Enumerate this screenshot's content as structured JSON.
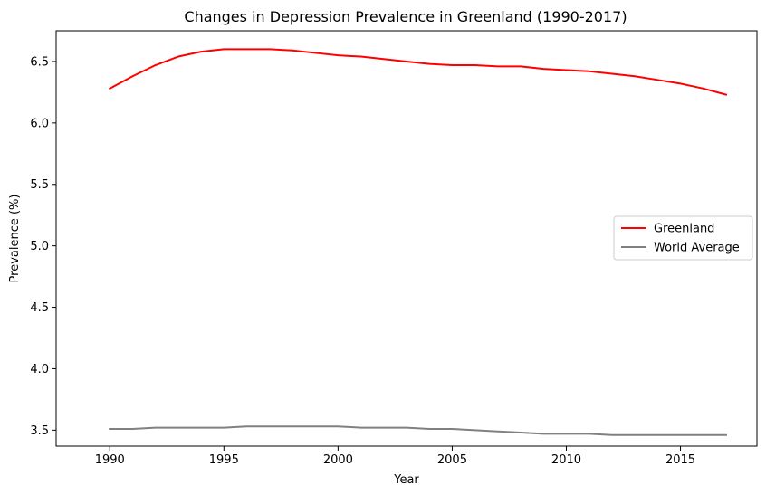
{
  "chart_data": {
    "type": "line",
    "title": "Changes in Depression Prevalence in Greenland (1990-2017)",
    "xlabel": "Year",
    "ylabel": "Prevalence (%)",
    "xlim": [
      1987.65,
      2018.35
    ],
    "ylim": [
      3.37,
      6.75
    ],
    "xticks": [
      1990,
      1995,
      2000,
      2005,
      2010,
      2015
    ],
    "yticks": [
      "3.5",
      "4.0",
      "4.5",
      "5.0",
      "5.5",
      "6.0",
      "6.5"
    ],
    "grid": false,
    "legend_position": "center-right",
    "x": [
      1990,
      1991,
      1992,
      1993,
      1994,
      1995,
      1996,
      1997,
      1998,
      1999,
      2000,
      2001,
      2002,
      2003,
      2004,
      2005,
      2006,
      2007,
      2008,
      2009,
      2010,
      2011,
      2012,
      2013,
      2014,
      2015,
      2016,
      2017
    ],
    "series": [
      {
        "name": "Greenland",
        "color": "#ff0000",
        "values": [
          6.28,
          6.38,
          6.47,
          6.54,
          6.58,
          6.6,
          6.6,
          6.6,
          6.59,
          6.57,
          6.55,
          6.54,
          6.52,
          6.5,
          6.48,
          6.47,
          6.47,
          6.46,
          6.46,
          6.44,
          6.43,
          6.42,
          6.4,
          6.38,
          6.35,
          6.32,
          6.28,
          6.23
        ]
      },
      {
        "name": "World Average",
        "color": "#808080",
        "values": [
          3.51,
          3.51,
          3.52,
          3.52,
          3.52,
          3.52,
          3.53,
          3.53,
          3.53,
          3.53,
          3.53,
          3.52,
          3.52,
          3.52,
          3.51,
          3.51,
          3.5,
          3.49,
          3.48,
          3.47,
          3.47,
          3.47,
          3.46,
          3.46,
          3.46,
          3.46,
          3.46,
          3.46
        ]
      }
    ]
  }
}
